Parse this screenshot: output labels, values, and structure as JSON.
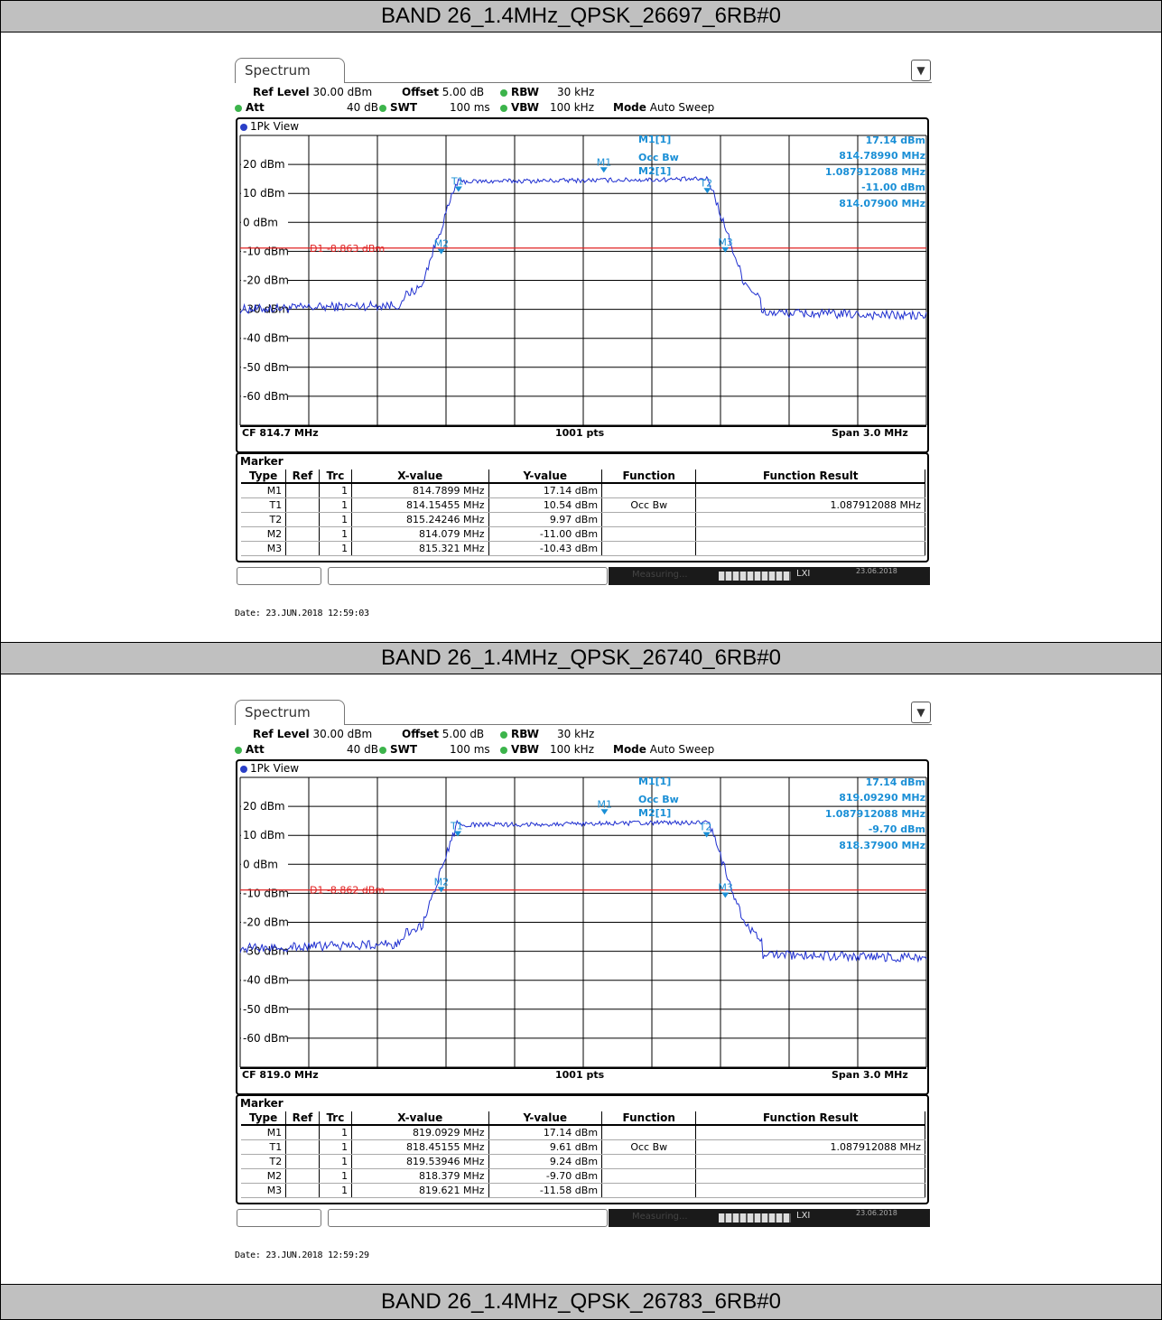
{
  "sections": [
    {
      "header": "BAND 26_1.4MHz_QPSK_26697_6RB#0",
      "tab_label": "Spectrum",
      "ref_level_label": "Ref Level",
      "ref_level": "30.00 dBm",
      "offset_label": "Offset",
      "offset": "5.00 dB",
      "rbw_label": "RBW",
      "rbw": "30 kHz",
      "att_label": "Att",
      "att": "40 dB",
      "swt_label": "SWT",
      "swt": "100 ms",
      "vbw_label": "VBW",
      "vbw": "100 kHz",
      "mode_label": "Mode",
      "mode": "Auto Sweep",
      "view_label": "1Pk View",
      "marker_title": "Marker",
      "readout": {
        "name": "M1[1]",
        "lines": [
          "17.14 dBm",
          "814.78990 MHz",
          "1.087912088 MHz",
          "-11.00 dBm",
          "814.07900 MHz"
        ]
      },
      "cf": "CF 814.7 MHz",
      "pts": "1001 pts",
      "span": "Span 3.0 MHz",
      "marker_table": {
        "columns": [
          "Type",
          "Ref",
          "Trc",
          "X-value",
          "Y-value",
          "Function",
          "Function Result"
        ],
        "rows": [
          [
            "M1",
            "",
            "1",
            "814.7899 MHz",
            "17.14 dBm",
            "",
            ""
          ],
          [
            "T1",
            "",
            "1",
            "814.15455 MHz",
            "10.54 dBm",
            "Occ Bw",
            "1.087912088 MHz"
          ],
          [
            "T2",
            "",
            "1",
            "815.24246 MHz",
            "9.97 dBm",
            "",
            ""
          ],
          [
            "M2",
            "",
            "1",
            "814.079 MHz",
            "-11.00 dBm",
            "",
            ""
          ],
          [
            "M3",
            "",
            "1",
            "815.321 MHz",
            "-10.43 dBm",
            "",
            ""
          ]
        ]
      },
      "status": {
        "measuring": "Measuring...",
        "lxi": "LXI",
        "date": "23.06.2018"
      },
      "date_stamp": "Date: 23.JUN.2018 12:59:03"
    },
    {
      "header": "BAND 26_1.4MHz_QPSK_26740_6RB#0",
      "tab_label": "Spectrum",
      "ref_level_label": "Ref Level",
      "ref_level": "30.00 dBm",
      "offset_label": "Offset",
      "offset": "5.00 dB",
      "rbw_label": "RBW",
      "rbw": "30 kHz",
      "att_label": "Att",
      "att": "40 dB",
      "swt_label": "SWT",
      "swt": "100 ms",
      "vbw_label": "VBW",
      "vbw": "100 kHz",
      "mode_label": "Mode",
      "mode": "Auto Sweep",
      "view_label": "1Pk View",
      "marker_title": "Marker",
      "readout": {
        "name": "M1[1]",
        "lines": [
          "17.14 dBm",
          "819.09290 MHz",
          "1.087912088 MHz",
          "-9.70 dBm",
          "818.37900 MHz"
        ]
      },
      "cf": "CF 819.0 MHz",
      "pts": "1001 pts",
      "span": "Span 3.0 MHz",
      "marker_table": {
        "columns": [
          "Type",
          "Ref",
          "Trc",
          "X-value",
          "Y-value",
          "Function",
          "Function Result"
        ],
        "rows": [
          [
            "M1",
            "",
            "1",
            "819.0929 MHz",
            "17.14 dBm",
            "",
            ""
          ],
          [
            "T1",
            "",
            "1",
            "818.45155 MHz",
            "9.61 dBm",
            "Occ Bw",
            "1.087912088 MHz"
          ],
          [
            "T2",
            "",
            "1",
            "819.53946 MHz",
            "9.24 dBm",
            "",
            ""
          ],
          [
            "M2",
            "",
            "1",
            "818.379 MHz",
            "-9.70 dBm",
            "",
            ""
          ],
          [
            "M3",
            "",
            "1",
            "819.621 MHz",
            "-11.58 dBm",
            "",
            ""
          ]
        ]
      },
      "status": {
        "measuring": "Measuring...",
        "lxi": "LXI",
        "date": "23.06.2018"
      },
      "date_stamp": "Date: 23.JUN.2018 12:59:29"
    },
    {
      "header": "BAND 26_1.4MHz_QPSK_26783_6RB#0"
    }
  ],
  "chart_data": [
    {
      "type": "line",
      "y_tick_labels": [
        "20 dBm",
        "10 dBm",
        "0 dBm",
        "-10 dBm",
        "-20 dBm",
        "-30 dBm",
        "-40 dBm",
        "-50 dBm",
        "-60 dBm"
      ],
      "ylim": [
        -70,
        30
      ],
      "xlim": [
        813.2,
        816.2
      ],
      "grid": true,
      "display_line": {
        "label": "D1",
        "value": -8.863,
        "text": "-8.863 dBm",
        "color": "#e02020"
      },
      "trace_color": "#1f2fd0",
      "trace_shape": {
        "center": 814.7,
        "occ_bw": 1.087912088,
        "in_band_level": 14.5,
        "noise_floor_left": -30,
        "noise_floor_right": -31,
        "edge_low": 814.0,
        "edge_high": 815.4
      },
      "markers": [
        {
          "name": "M1",
          "x": 814.7899,
          "y": 17.14
        },
        {
          "name": "T1",
          "x": 814.15455,
          "y": 10.54
        },
        {
          "name": "T2",
          "x": 815.24246,
          "y": 9.97
        },
        {
          "name": "M2",
          "x": 814.079,
          "y": -11.0
        },
        {
          "name": "M3",
          "x": 815.321,
          "y": -10.43
        }
      ],
      "occ_bw_label": "Occ Bw",
      "m2_label": "M2[1]"
    },
    {
      "type": "line",
      "y_tick_labels": [
        "20 dBm",
        "10 dBm",
        "0 dBm",
        "-10 dBm",
        "-20 dBm",
        "-30 dBm",
        "-40 dBm",
        "-50 dBm",
        "-60 dBm"
      ],
      "ylim": [
        -70,
        30
      ],
      "xlim": [
        817.5,
        820.5
      ],
      "grid": true,
      "display_line": {
        "label": "D1",
        "value": -8.862,
        "text": "-8.862 dBm",
        "color": "#e02020"
      },
      "trace_color": "#1f2fd0",
      "trace_shape": {
        "center": 819.0,
        "occ_bw": 1.087912088,
        "in_band_level": 14.0,
        "noise_floor_left": -29,
        "noise_floor_right": -31,
        "edge_low": 818.3,
        "edge_high": 819.7
      },
      "markers": [
        {
          "name": "M1",
          "x": 819.0929,
          "y": 17.14
        },
        {
          "name": "T1",
          "x": 818.45155,
          "y": 9.61
        },
        {
          "name": "T2",
          "x": 819.53946,
          "y": 9.24
        },
        {
          "name": "M2",
          "x": 818.379,
          "y": -9.7
        },
        {
          "name": "M3",
          "x": 819.621,
          "y": -11.58
        }
      ],
      "occ_bw_label": "Occ Bw",
      "m2_label": "M2[1]"
    }
  ]
}
